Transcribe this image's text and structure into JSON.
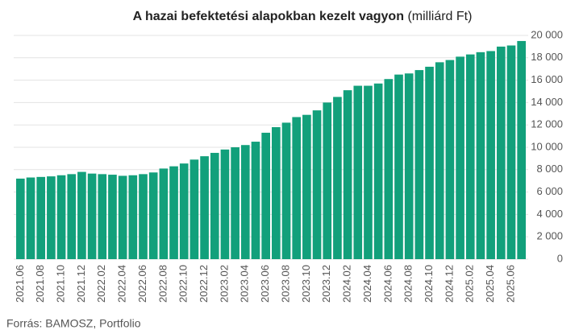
{
  "chart_data": {
    "type": "bar",
    "title": "A hazai befektetési alapokban kezelt vagyon",
    "subtitle": "(milliárd Ft)",
    "source": "Forrás: BAMOSZ, Portfolio",
    "categories": [
      "2021.06",
      null,
      "2021.08",
      null,
      "2021.10",
      null,
      "2021.12",
      null,
      "2022.02",
      null,
      "2022.04",
      null,
      "2022.06",
      null,
      "2022.08",
      null,
      "2022.10",
      null,
      "2022.12",
      null,
      "2023.02",
      null,
      "2023.04",
      null,
      "2023.06",
      null,
      "2023.08",
      null,
      "2023.10",
      null,
      "2023.12",
      null,
      "2024.02",
      null,
      "2024.04",
      null,
      "2024.06",
      null,
      "2024.08",
      null,
      "2024.10",
      null,
      "2024.12",
      null,
      "2025.02",
      null,
      "2025.04",
      null,
      "2025.06",
      null
    ],
    "values": [
      7200,
      7300,
      7350,
      7400,
      7500,
      7600,
      7800,
      7650,
      7600,
      7550,
      7450,
      7500,
      7600,
      7750,
      8100,
      8300,
      8550,
      8900,
      9200,
      9500,
      9800,
      10000,
      10200,
      10500,
      11300,
      11800,
      12200,
      12700,
      12900,
      13300,
      14000,
      14500,
      15100,
      15500,
      15500,
      15700,
      16100,
      16500,
      16600,
      16900,
      17200,
      17600,
      17800,
      18100,
      18300,
      18500,
      18600,
      19000,
      19100,
      19500
    ],
    "color": "#12a07b",
    "ylim": [
      0,
      20000
    ],
    "yticks": [
      0,
      {
        "value": 2000,
        "label": "2 000"
      },
      {
        "value": 4000,
        "label": "4 000"
      },
      {
        "value": 6000,
        "label": "6 000"
      },
      {
        "value": 8000,
        "label": "8 000"
      },
      {
        "value": 10000,
        "label": "10 000"
      },
      {
        "value": 12000,
        "label": "12 000"
      },
      {
        "value": 14000,
        "label": "14 000"
      },
      {
        "value": 16000,
        "label": "16 000"
      },
      {
        "value": 18000,
        "label": "18 000"
      },
      {
        "value": 20000,
        "label": "20 000"
      }
    ],
    "grid": true
  }
}
